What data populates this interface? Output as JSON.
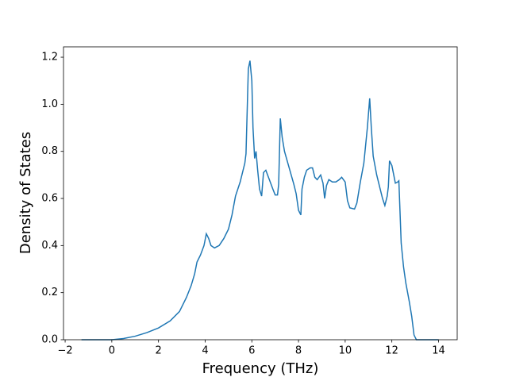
{
  "chart_data": {
    "type": "line",
    "xlabel": "Frequency (THz)",
    "ylabel": "Density of States",
    "xlim": [
      -2.07,
      14.8
    ],
    "ylim": [
      0,
      1.244
    ],
    "xticks": [
      {
        "value": -2,
        "label": "−2"
      },
      0,
      2,
      4,
      6,
      8,
      10,
      12,
      14
    ],
    "yticks": [
      {
        "value": 0,
        "label": "0.0"
      },
      0.2,
      0.4,
      0.6,
      0.8,
      {
        "value": 1,
        "label": "1.0"
      },
      1.2
    ],
    "grid": false,
    "series": [
      {
        "color": "#1f77b4",
        "x": [
          -1.3,
          -0.5,
          0,
          0.5,
          1.0,
          1.5,
          2.0,
          2.5,
          2.9,
          3.2,
          3.4,
          3.55,
          3.65,
          3.8,
          3.95,
          4.05,
          4.15,
          4.25,
          4.4,
          4.6,
          4.8,
          5.0,
          5.15,
          5.3,
          5.5,
          5.7,
          5.75,
          5.85,
          5.92,
          6.0,
          6.05,
          6.12,
          6.18,
          6.25,
          6.33,
          6.42,
          6.5,
          6.6,
          6.75,
          6.9,
          7.0,
          7.1,
          7.15,
          7.22,
          7.3,
          7.4,
          7.6,
          7.8,
          7.9,
          8.0,
          8.1,
          8.15,
          8.25,
          8.35,
          8.5,
          8.6,
          8.7,
          8.8,
          8.95,
          9.05,
          9.12,
          9.2,
          9.3,
          9.45,
          9.6,
          9.75,
          9.85,
          10.0,
          10.1,
          10.2,
          10.4,
          10.5,
          10.65,
          10.8,
          10.95,
          11.05,
          11.12,
          11.2,
          11.35,
          11.5,
          11.6,
          11.7,
          11.8,
          11.85,
          11.9,
          12.0,
          12.1,
          12.15,
          12.25,
          12.3,
          12.4,
          12.5,
          12.6,
          12.75,
          12.85,
          12.95,
          13.05,
          14.0
        ],
        "values": [
          0,
          0,
          0,
          0.005,
          0.015,
          0.03,
          0.05,
          0.08,
          0.12,
          0.18,
          0.23,
          0.28,
          0.33,
          0.36,
          0.4,
          0.45,
          0.43,
          0.4,
          0.39,
          0.4,
          0.43,
          0.47,
          0.53,
          0.61,
          0.67,
          0.75,
          0.79,
          1.15,
          1.185,
          1.1,
          0.9,
          0.77,
          0.8,
          0.72,
          0.64,
          0.61,
          0.71,
          0.72,
          0.68,
          0.64,
          0.615,
          0.615,
          0.66,
          0.94,
          0.86,
          0.8,
          0.73,
          0.66,
          0.62,
          0.55,
          0.53,
          0.64,
          0.69,
          0.72,
          0.73,
          0.73,
          0.69,
          0.68,
          0.7,
          0.665,
          0.6,
          0.655,
          0.68,
          0.67,
          0.67,
          0.68,
          0.69,
          0.67,
          0.59,
          0.56,
          0.555,
          0.58,
          0.67,
          0.75,
          0.9,
          1.025,
          0.9,
          0.78,
          0.7,
          0.64,
          0.6,
          0.57,
          0.61,
          0.65,
          0.76,
          0.74,
          0.69,
          0.665,
          0.67,
          0.675,
          0.41,
          0.31,
          0.24,
          0.16,
          0.1,
          0.02,
          0,
          0
        ]
      }
    ]
  }
}
